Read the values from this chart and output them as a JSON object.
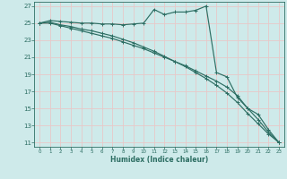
{
  "xlabel": "Humidex (Indice chaleur)",
  "bg_color": "#ceeaea",
  "grid_color": "#e8c8c8",
  "line_color": "#2d6e63",
  "xlim": [
    -0.5,
    23.5
  ],
  "ylim": [
    10.5,
    27.5
  ],
  "yticks": [
    11,
    13,
    15,
    17,
    19,
    21,
    23,
    25,
    27
  ],
  "xticks": [
    0,
    1,
    2,
    3,
    4,
    5,
    6,
    7,
    8,
    9,
    10,
    11,
    12,
    13,
    14,
    15,
    16,
    17,
    18,
    19,
    20,
    21,
    22,
    23
  ],
  "line1_x": [
    0,
    1,
    2,
    3,
    4,
    5,
    6,
    7,
    8,
    9,
    10,
    11,
    12,
    13,
    14,
    15,
    16,
    17,
    18,
    19,
    20,
    21,
    22,
    23
  ],
  "line1_y": [
    25.0,
    25.3,
    25.2,
    25.1,
    25.0,
    25.0,
    24.9,
    24.9,
    24.8,
    24.9,
    25.0,
    26.6,
    26.0,
    26.3,
    26.3,
    26.5,
    27.0,
    19.2,
    18.7,
    16.3,
    15.0,
    14.3,
    12.5,
    11.0
  ],
  "line2_x": [
    0,
    1,
    2,
    3,
    4,
    5,
    6,
    7,
    8,
    9,
    10,
    11,
    12,
    13,
    14,
    15,
    16,
    17,
    18,
    19,
    20,
    21,
    22,
    23
  ],
  "line2_y": [
    25.0,
    25.0,
    24.7,
    24.4,
    24.1,
    23.8,
    23.5,
    23.2,
    22.8,
    22.4,
    22.0,
    21.5,
    21.0,
    20.5,
    20.0,
    19.4,
    18.8,
    18.2,
    17.5,
    16.5,
    15.0,
    13.7,
    12.2,
    11.0
  ],
  "line3_x": [
    0,
    1,
    2,
    3,
    4,
    5,
    6,
    7,
    8,
    9,
    10,
    11,
    12,
    13,
    14,
    15,
    16,
    17,
    18,
    19,
    20,
    21,
    22,
    23
  ],
  "line3_y": [
    25.0,
    25.1,
    24.8,
    24.6,
    24.3,
    24.1,
    23.8,
    23.5,
    23.1,
    22.7,
    22.2,
    21.7,
    21.1,
    20.5,
    19.9,
    19.2,
    18.5,
    17.7,
    16.8,
    15.7,
    14.4,
    13.2,
    12.0,
    11.0
  ]
}
